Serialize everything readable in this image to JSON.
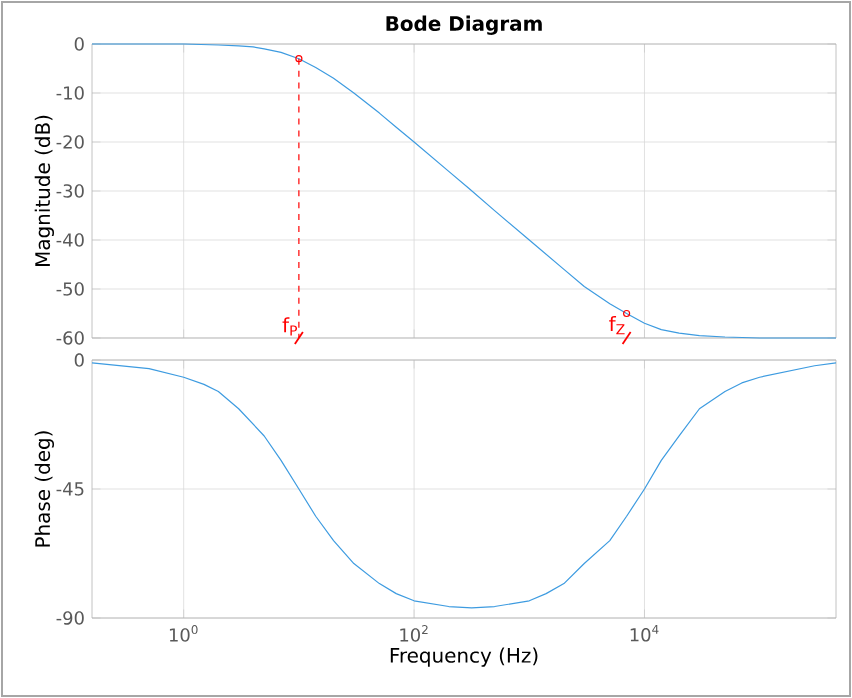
{
  "chart_data": [
    {
      "type": "line",
      "title": "Bode Diagram",
      "ylabel": "Magnitude (dB)",
      "log": "x",
      "grid": true,
      "tick_labels": "y",
      "xlim": [
        0.16,
        460000
      ],
      "ylim": [
        -60,
        0
      ],
      "xticks": [
        {
          "value": 1,
          "label": null
        },
        {
          "value": 100,
          "label": null
        },
        {
          "value": 10000,
          "label": null
        }
      ],
      "yticks": [
        -60,
        -50,
        -40,
        -30,
        -20,
        -10,
        0
      ],
      "series": [
        {
          "color": "#3d9be0",
          "x": [
            0.16,
            1,
            2,
            3,
            4,
            5,
            7,
            10,
            14,
            20,
            30,
            50,
            70,
            100,
            200,
            300,
            500,
            1000,
            2000,
            3000,
            5000,
            7000,
            10000,
            14000,
            20000,
            30000,
            50000,
            100000,
            460000
          ],
          "values": [
            0,
            0,
            -0.2,
            -0.4,
            -0.6,
            -1,
            -1.7,
            -3,
            -4.8,
            -7,
            -10,
            -14.1,
            -17,
            -20,
            -26,
            -29.5,
            -34,
            -40,
            -46,
            -49.5,
            -53,
            -55,
            -57,
            -58.3,
            -59,
            -59.5,
            -59.8,
            -60,
            -60
          ]
        },
        {
          "type": "line",
          "color": "#ff0000",
          "line_style": "dashed",
          "x": [
            10,
            10
          ],
          "values": [
            -3,
            -60
          ]
        },
        {
          "type": "scatter",
          "color": "#ff0000",
          "marker": "circle",
          "x": [
            10,
            7000
          ],
          "values": [
            -3,
            -55
          ]
        }
      ],
      "annotations": [
        {
          "text": "f$_{P}$",
          "x": 10,
          "y": -60
        },
        {
          "text": "f$_{Z}$",
          "x": 7000,
          "y": -55
        }
      ]
    },
    {
      "type": "line",
      "ylabel": "Phase (deg)",
      "xlabel": "Frequency  (Hz)",
      "log": "x",
      "grid": true,
      "xlim": [
        0.16,
        460000
      ],
      "ylim": [
        -90,
        0
      ],
      "xticks": [
        {
          "value": 1,
          "label": "10$^{0}$"
        },
        {
          "value": 100,
          "label": "10$^{2}$"
        },
        {
          "value": 10000,
          "label": "10$^{4}$"
        }
      ],
      "yticks": [
        -90,
        -45,
        0
      ],
      "series": [
        {
          "color": "#3d9be0",
          "x": [
            0.16,
            0.5,
            1,
            1.5,
            2,
            3,
            5,
            7,
            10,
            14,
            20,
            30,
            50,
            70,
            100,
            200,
            316,
            500,
            1000,
            1400,
            2000,
            3000,
            5000,
            7000,
            10000,
            14000,
            20000,
            30000,
            50000,
            70000,
            100000,
            300000,
            460000
          ],
          "values": [
            -1,
            -3,
            -6,
            -8.5,
            -11,
            -17,
            -26.5,
            -35,
            -45,
            -54.5,
            -63,
            -71,
            -78,
            -81.5,
            -84,
            -86,
            -86.5,
            -86,
            -84,
            -81.5,
            -78,
            -71,
            -63,
            -54.5,
            -45,
            -35,
            -26.5,
            -17,
            -11,
            -8,
            -6,
            -2,
            -1
          ]
        }
      ]
    }
  ]
}
